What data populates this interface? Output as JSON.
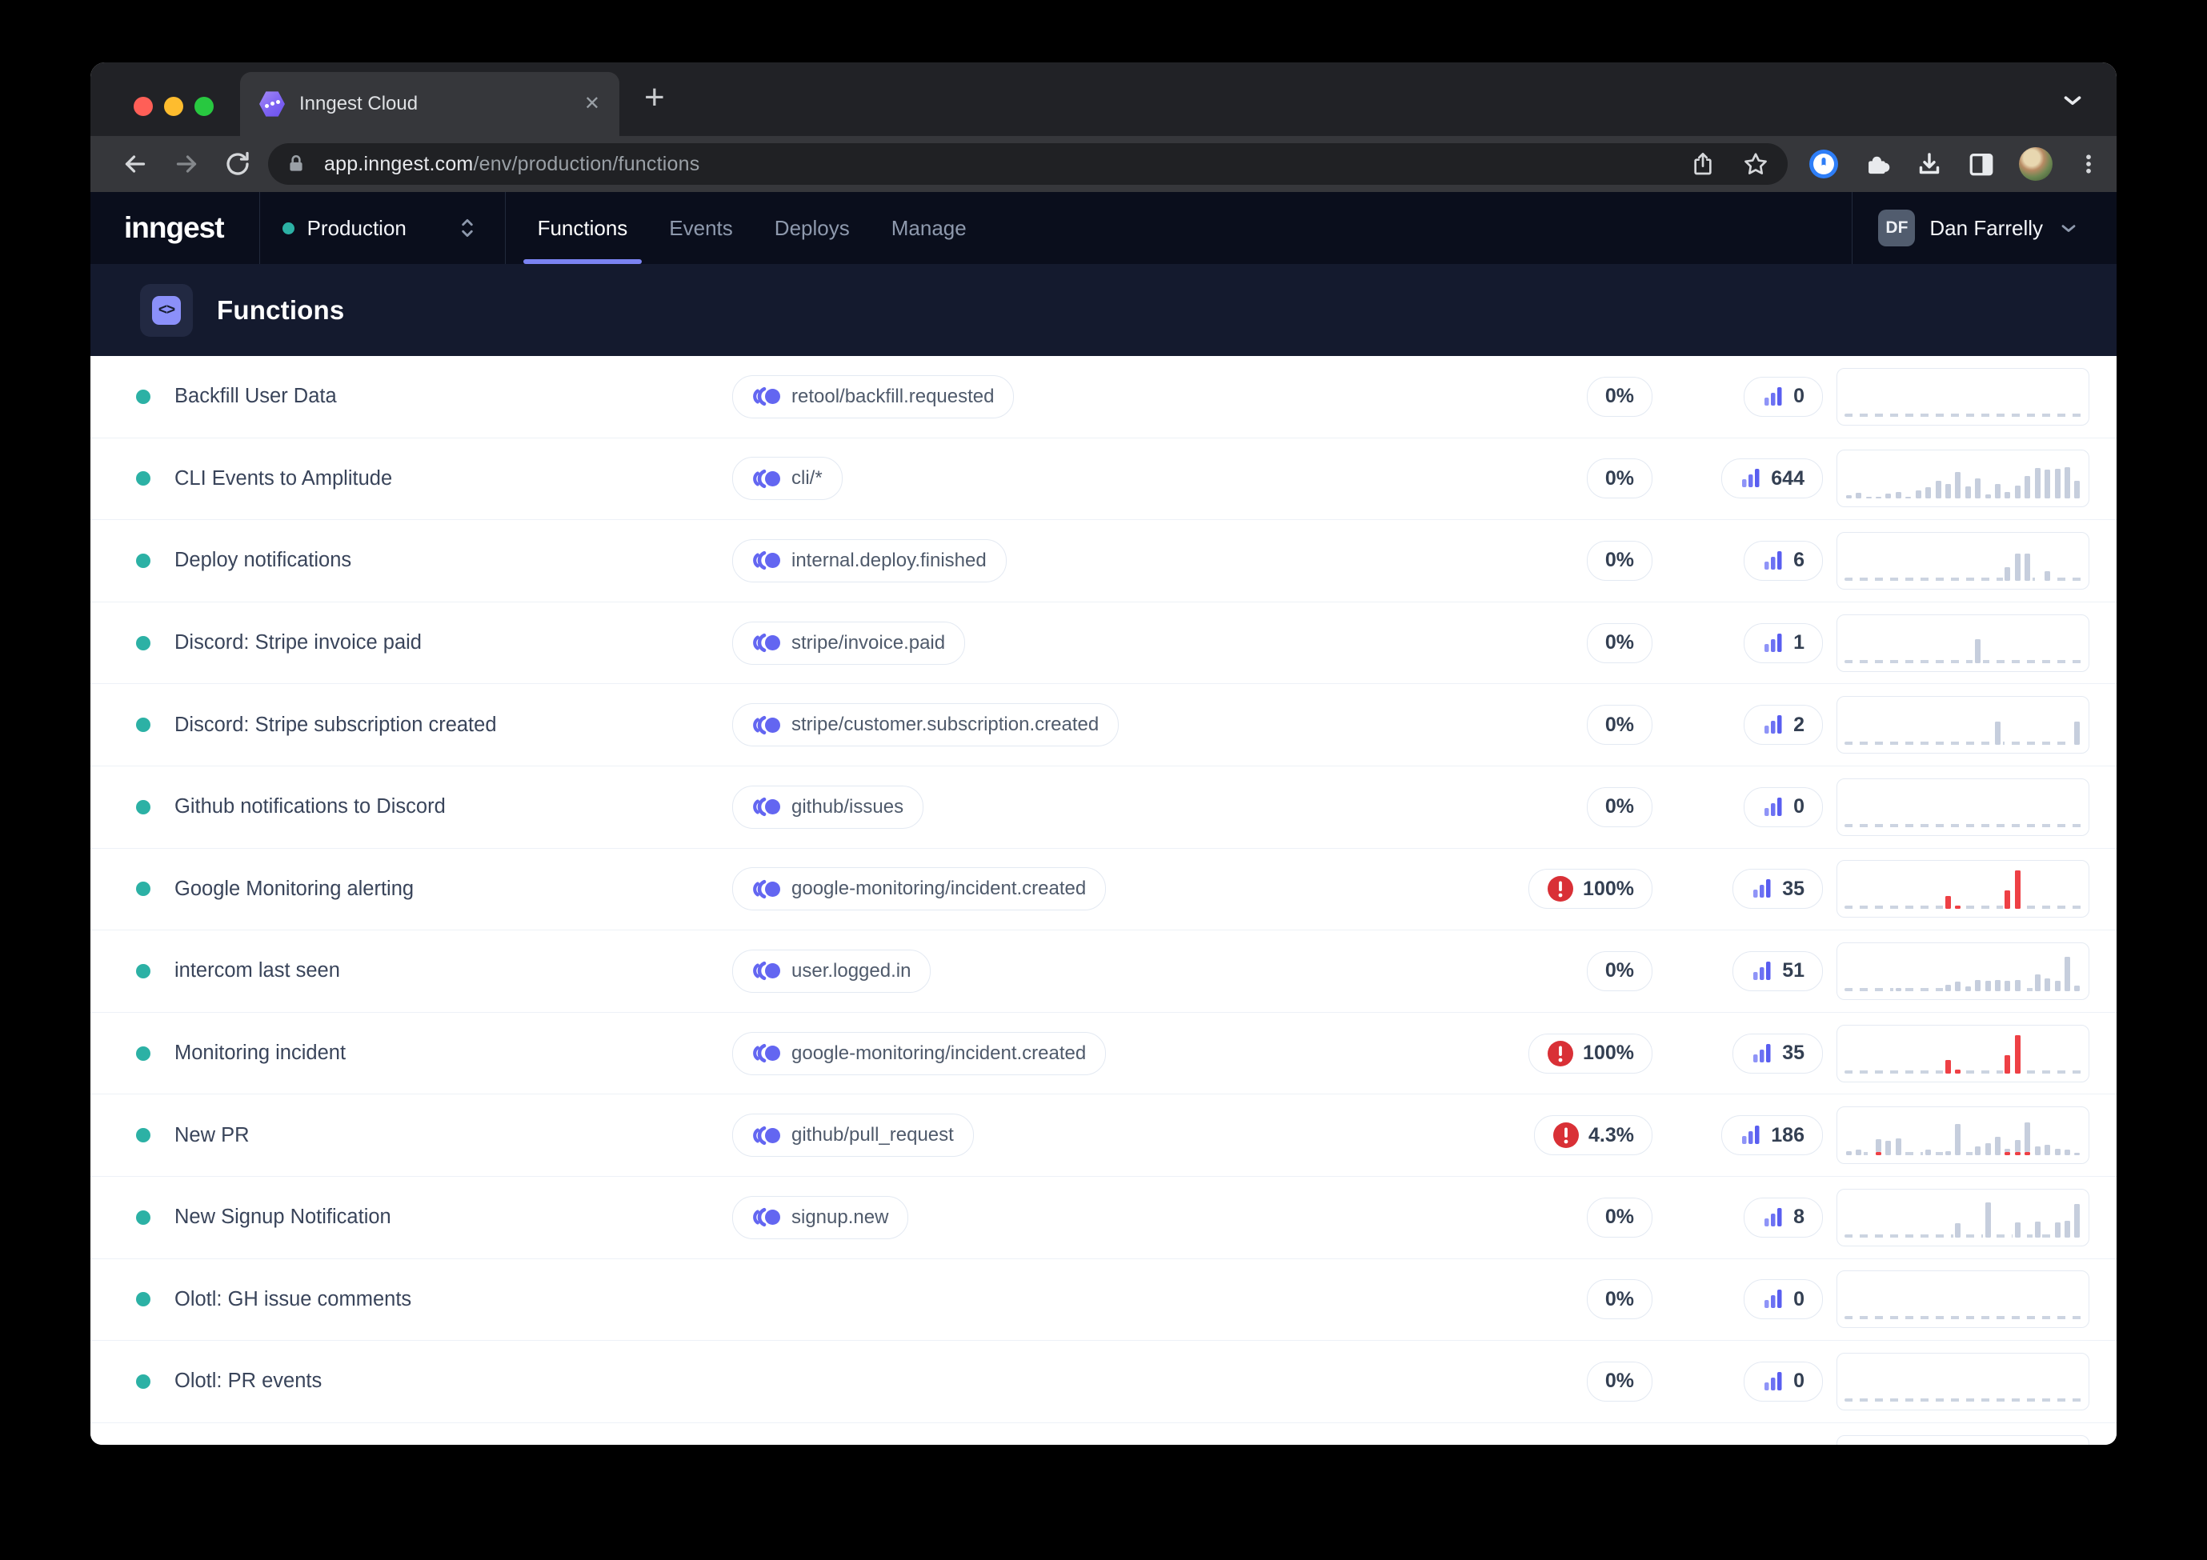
{
  "colors": {
    "accent": "#6366f1",
    "teal": "#2cb1a5",
    "error_red": "#d93036",
    "bar_gray": "#c6cedd",
    "bar_red": "#ee4045",
    "tab_underline": "#7b83f2"
  },
  "browser": {
    "tab_title": "Inngest Cloud",
    "close_glyph": "✕",
    "new_tab_glyph": "+",
    "url_host": "app.inngest.com",
    "url_path": "/env/production/functions"
  },
  "nav": {
    "logo": "inngest",
    "environment": "Production",
    "tabs": [
      {
        "label": "Functions",
        "active": true
      },
      {
        "label": "Events",
        "active": false
      },
      {
        "label": "Deploys",
        "active": false
      },
      {
        "label": "Manage",
        "active": false
      }
    ],
    "user": {
      "initials": "DF",
      "name": "Dan Farrelly"
    }
  },
  "page": {
    "title": "Functions",
    "icon_glyph": "<>"
  },
  "table": {
    "rows": [
      {
        "name": "Backfill User Data",
        "event": "retool/backfill.requested",
        "pct": "0%",
        "error": false,
        "count": "0",
        "chart": []
      },
      {
        "name": "CLI Events to Amplitude",
        "event": "cli/*",
        "pct": "0%",
        "error": false,
        "count": "644",
        "chart": [
          10,
          16,
          6,
          6,
          14,
          18,
          6,
          22,
          30,
          46,
          38,
          70,
          32,
          52,
          12,
          38,
          18,
          34,
          60,
          80,
          76,
          78,
          82,
          46
        ]
      },
      {
        "name": "Deploy notifications",
        "event": "internal.deploy.finished",
        "pct": "0%",
        "error": false,
        "count": "6",
        "chart": [
          0,
          0,
          0,
          0,
          0,
          0,
          0,
          0,
          0,
          0,
          0,
          0,
          0,
          0,
          0,
          0,
          36,
          70,
          70,
          0,
          26,
          0,
          0,
          0
        ]
      },
      {
        "name": "Discord: Stripe invoice paid",
        "event": "stripe/invoice.paid",
        "pct": "0%",
        "error": false,
        "count": "1",
        "chart": [
          0,
          0,
          0,
          0,
          0,
          0,
          0,
          0,
          0,
          0,
          0,
          0,
          0,
          62,
          0,
          0,
          0,
          0,
          0,
          0,
          0,
          0,
          0,
          0
        ]
      },
      {
        "name": "Discord: Stripe subscription created",
        "event": "stripe/customer.subscription.created",
        "pct": "0%",
        "error": false,
        "count": "2",
        "chart": [
          0,
          0,
          0,
          0,
          0,
          0,
          0,
          0,
          0,
          0,
          0,
          0,
          0,
          0,
          0,
          60,
          0,
          0,
          0,
          0,
          0,
          0,
          0,
          60
        ]
      },
      {
        "name": "Github notifications to Discord",
        "event": "github/issues",
        "pct": "0%",
        "error": false,
        "count": "0",
        "chart": []
      },
      {
        "name": "Google Monitoring alerting",
        "event": "google-monitoring/incident.created",
        "pct": "100%",
        "error": true,
        "count": "35",
        "chart": [
          0,
          0,
          0,
          0,
          0,
          0,
          0,
          0,
          0,
          0,
          [
            0,
            35
          ],
          [
            0,
            10
          ],
          0,
          0,
          0,
          0,
          [
            0,
            48
          ],
          [
            0,
            100
          ],
          0,
          0,
          0,
          0,
          0,
          0
        ]
      },
      {
        "name": "intercom last seen",
        "event": "user.logged.in",
        "pct": "0%",
        "error": false,
        "count": "51",
        "chart": [
          0,
          0,
          0,
          0,
          0,
          8,
          0,
          0,
          0,
          0,
          16,
          24,
          12,
          30,
          26,
          30,
          26,
          30,
          0,
          44,
          34,
          26,
          90,
          14
        ]
      },
      {
        "name": "Monitoring incident",
        "event": "google-monitoring/incident.created",
        "pct": "100%",
        "error": true,
        "count": "35",
        "chart": [
          0,
          0,
          0,
          0,
          0,
          0,
          0,
          0,
          0,
          0,
          [
            0,
            35
          ],
          [
            0,
            10
          ],
          0,
          0,
          0,
          0,
          [
            0,
            48
          ],
          [
            0,
            100
          ],
          0,
          0,
          0,
          0,
          0,
          0
        ]
      },
      {
        "name": "New PR",
        "event": "github/pull_request",
        "pct": "4.3%",
        "error": true,
        "count": "186",
        "chart": [
          10,
          14,
          0,
          [
            34,
            8
          ],
          37,
          44,
          0,
          0,
          14,
          0,
          10,
          82,
          0,
          24,
          31,
          48,
          [
            10,
            8
          ],
          [
            31,
            8
          ],
          [
            78,
            8
          ],
          24,
          27,
          17,
          14,
          7
        ]
      },
      {
        "name": "New Signup Notification",
        "event": "signup.new",
        "pct": "0%",
        "error": false,
        "count": "8",
        "chart": [
          0,
          0,
          0,
          0,
          0,
          0,
          0,
          0,
          0,
          0,
          0,
          38,
          0,
          0,
          92,
          0,
          0,
          40,
          0,
          42,
          0,
          40,
          44,
          88
        ]
      },
      {
        "name": "Olotl: GH issue comments",
        "event": "",
        "pct": "0%",
        "error": false,
        "count": "0",
        "chart": []
      },
      {
        "name": "Olotl: PR events",
        "event": "",
        "pct": "0%",
        "error": false,
        "count": "0",
        "chart": []
      },
      {
        "name": "",
        "event": "",
        "pct": "",
        "error": false,
        "count": "",
        "chart": [],
        "partial": true
      }
    ]
  }
}
